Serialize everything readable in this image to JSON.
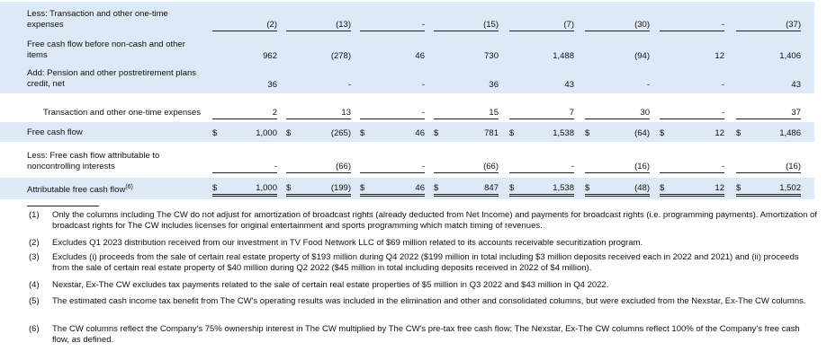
{
  "table": {
    "rows": [
      {
        "label": "Less: Transaction and other one-time expenses",
        "cells": [
          "(2)",
          "(13)",
          "-",
          "(15)",
          "(7)",
          "(30)",
          "-",
          "(37)"
        ]
      },
      {
        "label": "Free cash flow before non-cash and other items",
        "cells": [
          "962",
          "(278)",
          "46",
          "730",
          "1,488",
          "(94)",
          "12",
          "1,406"
        ]
      },
      {
        "label": "Add: Pension and other postretirement plans credit, net",
        "cells": [
          "36",
          "-",
          "-",
          "36",
          "43",
          "-",
          "-",
          "43"
        ]
      },
      {
        "label": "Transaction and other one-time expenses",
        "cells": [
          "2",
          "13",
          "-",
          "15",
          "7",
          "30",
          "-",
          "37"
        ]
      },
      {
        "label": "Free cash flow",
        "currency": "$",
        "cells": [
          "1,000",
          "(265)",
          "46",
          "781",
          "1,538",
          "(64)",
          "12",
          "1,486"
        ]
      },
      {
        "label": "Less: Free cash flow attributable to noncontrolling interests",
        "cells": [
          "-",
          "(66)",
          "-",
          "(66)",
          "-",
          "(16)",
          "-",
          "(16)"
        ]
      },
      {
        "label": "Attributable free cash flow",
        "footnote_ref": "(6)",
        "currency": "$",
        "cells": [
          "1,000",
          "(199)",
          "46",
          "847",
          "1,538",
          "(48)",
          "12",
          "1,502"
        ]
      }
    ]
  },
  "footnotes": [
    {
      "marker": "(1)",
      "text": "Only the columns including The CW do not adjust for amortization of broadcast rights (already deducted from Net Income) and payments for broadcast rights (i.e. programming payments). Amortization of broadcast rights for The CW includes licenses for original entertainment and sports programming which match timing of revenues."
    },
    {
      "marker": "(2)",
      "text": "Excludes Q1 2023 distribution received from our investment in TV Food Network LLC of $69 million related to its accounts receivable securitization program."
    },
    {
      "marker": "(3)",
      "text": "Excludes (i) proceeds from the sale of certain real estate property of $193 million during Q4 2022 ($199 million in total including $3 million deposits received each in 2022 and 2021) and (ii) proceeds from the sale of certain real estate property of $40 million during Q2 2022 ($45 million in total including deposits received in 2022 of $4 million)."
    },
    {
      "marker": "(4)",
      "text": "Nexstar, Ex-The CW excludes tax payments related to the sale of certain real estate properties of $5 million in Q3 2022 and $43 million in Q4 2022."
    },
    {
      "marker": "(5)",
      "text": "The estimated cash income tax benefit from The CW's operating results was included in the elimination and other and consolidated columns, but were excluded from the Nexstar, Ex-The CW columns."
    },
    {
      "marker": "(6)",
      "text": "The CW columns reflect the Company's 75% ownership interest in The CW multiplied by The CW's pre-tax free cash flow; The Nexstar, Ex-The CW columns reflect 100% of the Company's free cash flow, as defined."
    }
  ]
}
